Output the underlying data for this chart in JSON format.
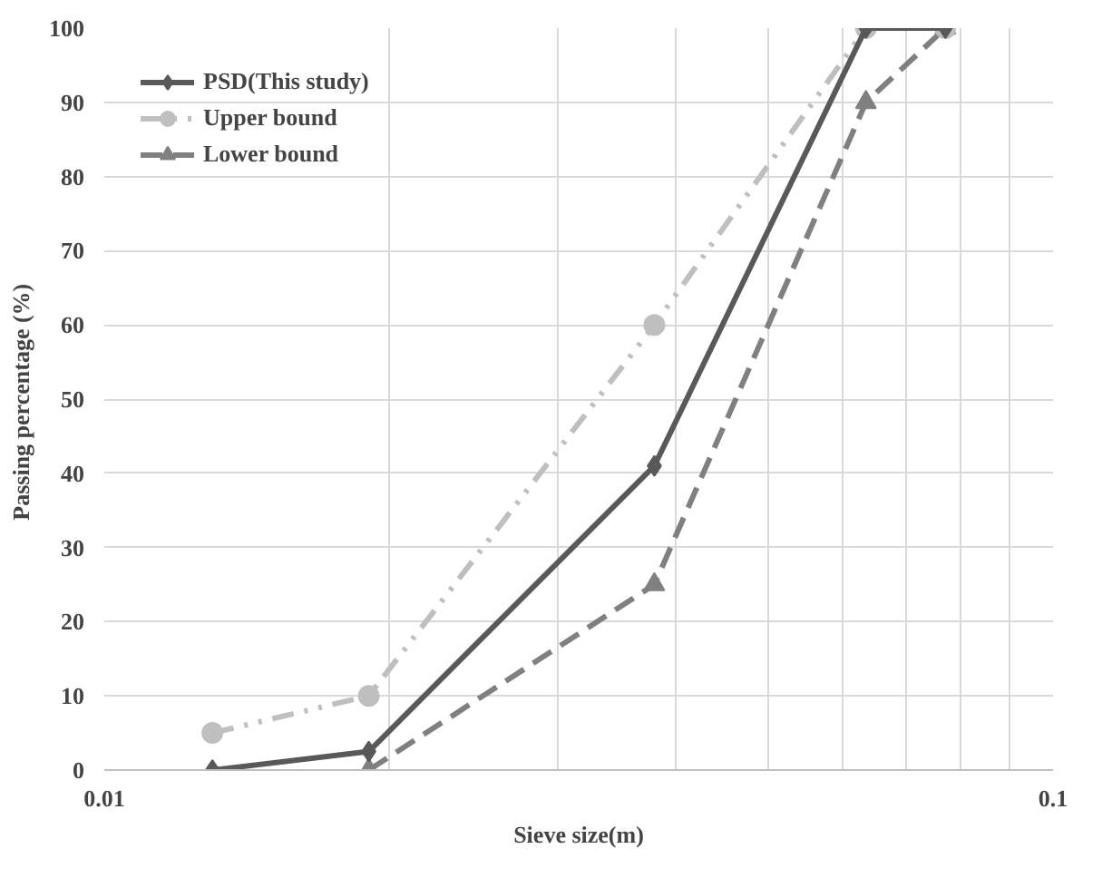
{
  "chart_data": {
    "type": "line",
    "xlabel": "Sieve size(m)",
    "ylabel": "Passing  percentage (%)",
    "log": "x",
    "xlim": [
      0.01,
      0.1
    ],
    "xticks": [
      0.01,
      {
        "value": 0.02,
        "label": null
      },
      {
        "value": 0.03,
        "label": null
      },
      {
        "value": 0.04,
        "label": null
      },
      {
        "value": 0.05,
        "label": null
      },
      {
        "value": 0.06,
        "label": null
      },
      {
        "value": 0.07,
        "label": null
      },
      {
        "value": 0.08,
        "label": null
      },
      {
        "value": 0.09,
        "label": null
      },
      0.1
    ],
    "ylim": [
      0,
      100
    ],
    "yticks": [
      0,
      10,
      20,
      30,
      40,
      50,
      60,
      70,
      80,
      90,
      100
    ],
    "grid": true,
    "legend": "top left",
    "series": [
      {
        "name": "PSD(This study)",
        "color": "#595959",
        "marker": "diamond",
        "line_style": "solid",
        "x": [
          0.013,
          0.019,
          0.038,
          0.0635,
          0.077
        ],
        "values": [
          0,
          2.5,
          41,
          100,
          100
        ]
      },
      {
        "name": "Upper bound",
        "color": "#bfbfbf",
        "marker": "circle",
        "line_style": "dashdot",
        "x": [
          0.013,
          0.019,
          0.038,
          0.0635,
          0.077
        ],
        "values": [
          5,
          10,
          60,
          100,
          100
        ]
      },
      {
        "name": "Lower bound",
        "color": "#808080",
        "marker": "triangle",
        "line_style": "dashed",
        "x": [
          0.019,
          0.038,
          0.0635,
          0.077
        ],
        "values": [
          0,
          25,
          90,
          100
        ]
      }
    ]
  }
}
